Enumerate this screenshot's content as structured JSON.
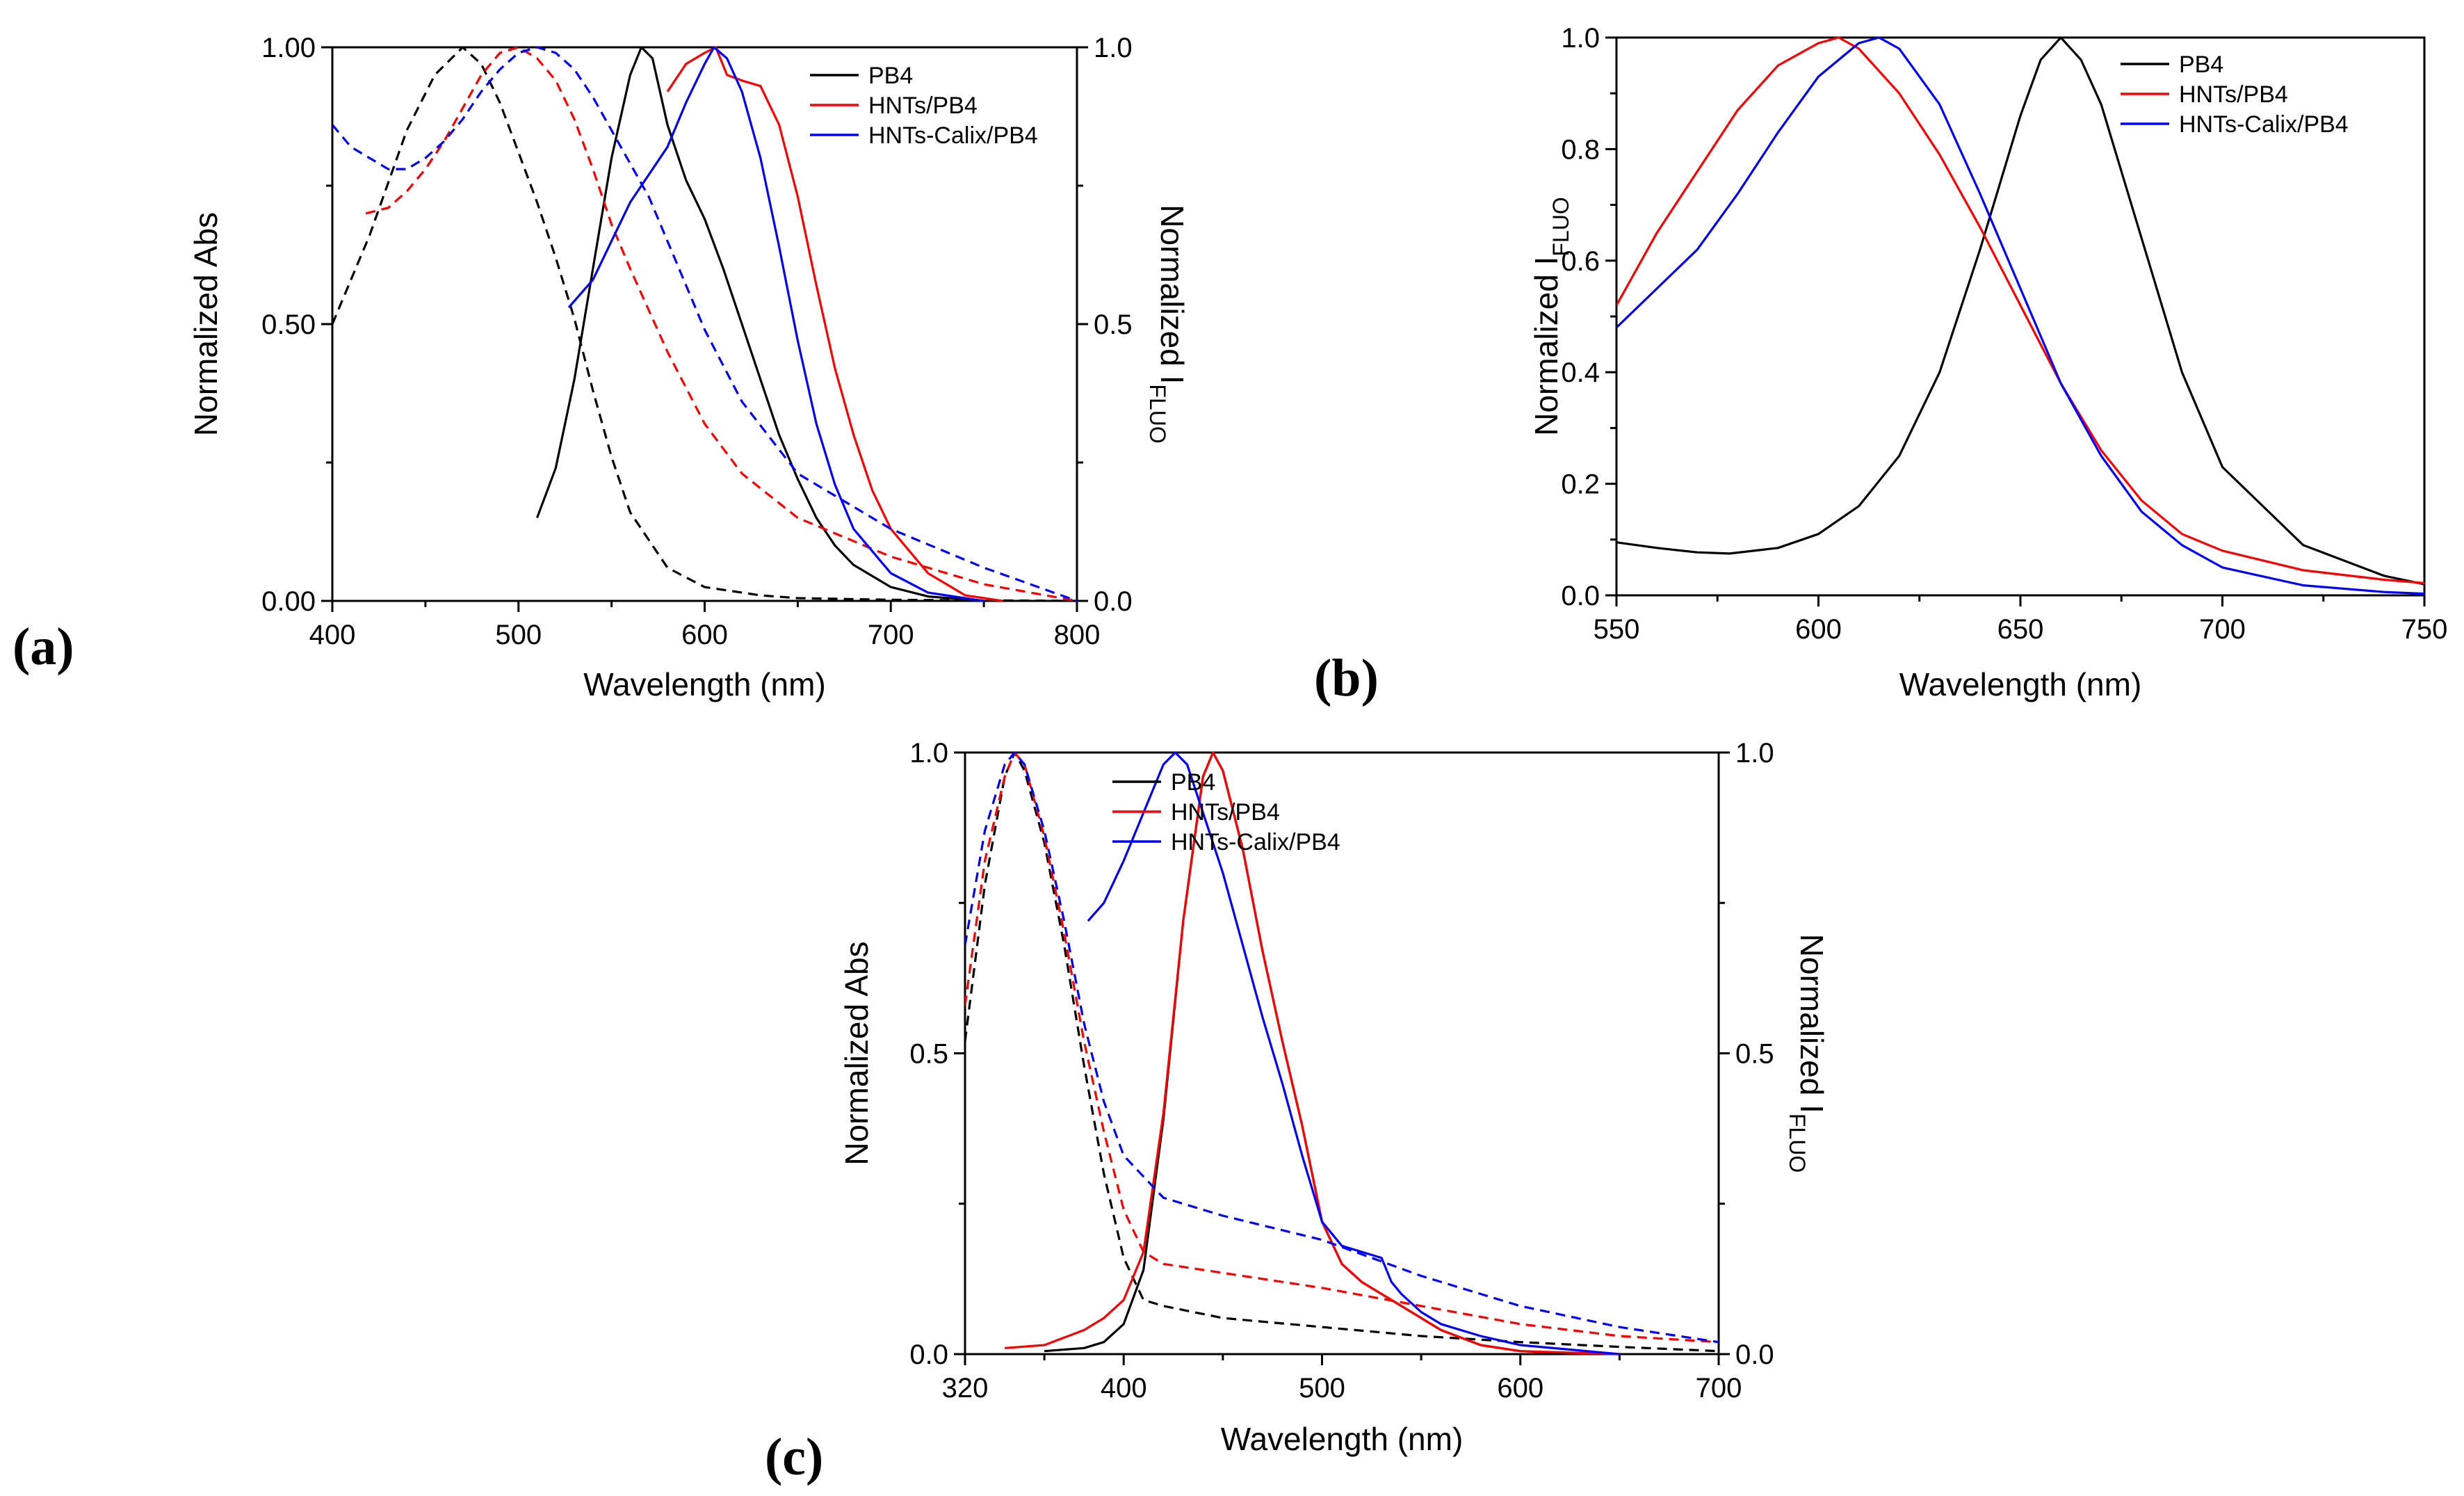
{
  "figure": {
    "panels": [
      "(a)",
      "(b)",
      "(c)"
    ]
  },
  "colors": {
    "PB4": "#000000",
    "HNTs/PB4": "#ff0000",
    "HNTs-Calix/PB4": "#0000ff"
  },
  "chart_data": [
    {
      "type": "line",
      "panel_label": "(a)",
      "xlabel": "Wavelength (nm)",
      "ylabel": "Normalized Abs",
      "y2label": "Normalized I",
      "y2label_sub": "FLUO",
      "xlim": [
        400,
        800
      ],
      "ylim": [
        0,
        1
      ],
      "y2lim": [
        0,
        1
      ],
      "xticks": [
        400,
        500,
        600,
        700,
        800
      ],
      "yticks": [
        0,
        0.5,
        1
      ],
      "ytick_labels": [
        "0.00",
        "0.50",
        "1.00"
      ],
      "y2ticks": [
        0,
        0.5,
        1
      ],
      "y2tick_labels": [
        "0.0",
        "0.5",
        "1.0"
      ],
      "legend": [
        "PB4",
        "HNTs/PB4",
        "HNTs-Calix/PB4"
      ],
      "legend_position": "top-right",
      "series": [
        {
          "name": "PB4",
          "role": "absorption",
          "style": "dashed",
          "color": "#000000",
          "x": [
            400,
            420,
            440,
            455,
            470,
            480,
            490,
            500,
            510,
            520,
            530,
            540,
            550,
            560,
            580,
            600,
            630,
            650,
            700,
            750,
            800
          ],
          "y": [
            0.5,
            0.66,
            0.85,
            0.95,
            1.0,
            0.97,
            0.9,
            0.81,
            0.72,
            0.62,
            0.51,
            0.38,
            0.26,
            0.16,
            0.06,
            0.025,
            0.01,
            0.005,
            0.002,
            0.001,
            0
          ]
        },
        {
          "name": "PB4",
          "role": "emission",
          "style": "solid",
          "color": "#000000",
          "x": [
            510,
            520,
            530,
            540,
            550,
            560,
            566,
            572,
            580,
            590,
            600,
            610,
            620,
            630,
            640,
            650,
            660,
            670,
            680,
            700,
            720,
            750
          ],
          "y": [
            0.15,
            0.24,
            0.4,
            0.6,
            0.8,
            0.95,
            1.0,
            0.98,
            0.86,
            0.76,
            0.69,
            0.6,
            0.5,
            0.4,
            0.3,
            0.22,
            0.15,
            0.1,
            0.065,
            0.025,
            0.008,
            0
          ]
        },
        {
          "name": "HNTs/PB4",
          "role": "absorption",
          "style": "dashed",
          "color": "#ff0000",
          "x": [
            418,
            430,
            440,
            450,
            460,
            470,
            480,
            490,
            500,
            510,
            520,
            530,
            540,
            550,
            560,
            580,
            600,
            620,
            650,
            700,
            750,
            800
          ],
          "y": [
            0.7,
            0.71,
            0.74,
            0.78,
            0.83,
            0.89,
            0.95,
            0.99,
            1.0,
            0.98,
            0.94,
            0.87,
            0.78,
            0.68,
            0.6,
            0.45,
            0.32,
            0.23,
            0.15,
            0.08,
            0.03,
            0
          ]
        },
        {
          "name": "HNTs/PB4",
          "role": "emission",
          "style": "solid",
          "color": "#ff0000",
          "x": [
            580,
            590,
            600,
            606,
            612,
            620,
            630,
            640,
            650,
            660,
            670,
            680,
            690,
            700,
            720,
            740,
            760
          ],
          "y": [
            0.92,
            0.97,
            0.99,
            1.0,
            0.95,
            0.94,
            0.93,
            0.86,
            0.73,
            0.57,
            0.42,
            0.3,
            0.2,
            0.13,
            0.05,
            0.01,
            0
          ]
        },
        {
          "name": "HNTs-Calix/PB4",
          "role": "absorption",
          "style": "dashed",
          "color": "#0000ff",
          "x": [
            400,
            410,
            420,
            430,
            440,
            450,
            460,
            470,
            480,
            490,
            500,
            510,
            520,
            530,
            540,
            550,
            560,
            570,
            580,
            600,
            620,
            650,
            700,
            750,
            800
          ],
          "y": [
            0.86,
            0.82,
            0.8,
            0.78,
            0.78,
            0.8,
            0.83,
            0.87,
            0.92,
            0.96,
            0.99,
            1.0,
            0.99,
            0.96,
            0.91,
            0.85,
            0.79,
            0.73,
            0.65,
            0.49,
            0.36,
            0.23,
            0.13,
            0.06,
            0
          ]
        },
        {
          "name": "HNTs-Calix/PB4",
          "role": "emission",
          "style": "solid",
          "color": "#0000ff",
          "x": [
            527,
            540,
            550,
            560,
            570,
            580,
            590,
            600,
            605,
            612,
            620,
            630,
            640,
            650,
            660,
            670,
            680,
            700,
            720,
            750
          ],
          "y": [
            0.53,
            0.58,
            0.65,
            0.72,
            0.77,
            0.82,
            0.9,
            0.97,
            1.0,
            0.98,
            0.92,
            0.8,
            0.64,
            0.47,
            0.32,
            0.21,
            0.13,
            0.05,
            0.015,
            0
          ]
        }
      ]
    },
    {
      "type": "line",
      "panel_label": "(b)",
      "xlabel": "Wavelength (nm)",
      "ylabel": "Normalized I",
      "ylabel_sub": "FLUO",
      "xlim": [
        550,
        750
      ],
      "ylim": [
        0,
        1
      ],
      "xticks": [
        550,
        600,
        650,
        700,
        750
      ],
      "yticks": [
        0,
        0.2,
        0.4,
        0.6,
        0.8,
        1
      ],
      "ytick_labels": [
        "0.0",
        "0.2",
        "0.4",
        "0.6",
        "0.8",
        "1.0"
      ],
      "legend": [
        "PB4",
        "HNTs/PB4",
        "HNTs-Calix/PB4"
      ],
      "legend_position": "top-right",
      "series": [
        {
          "name": "PB4",
          "color": "#000000",
          "x": [
            550,
            560,
            570,
            578,
            590,
            600,
            610,
            620,
            630,
            640,
            650,
            655,
            660,
            665,
            670,
            680,
            690,
            700,
            720,
            740,
            750
          ],
          "y": [
            0.095,
            0.085,
            0.077,
            0.075,
            0.085,
            0.11,
            0.16,
            0.25,
            0.4,
            0.62,
            0.86,
            0.96,
            1.0,
            0.96,
            0.88,
            0.64,
            0.4,
            0.23,
            0.09,
            0.035,
            0.02
          ]
        },
        {
          "name": "HNTs/PB4",
          "color": "#ff0000",
          "x": [
            550,
            560,
            570,
            580,
            590,
            600,
            605,
            610,
            620,
            630,
            640,
            650,
            660,
            670,
            680,
            690,
            700,
            720,
            740,
            750
          ],
          "y": [
            0.52,
            0.65,
            0.76,
            0.87,
            0.95,
            0.99,
            1.0,
            0.98,
            0.9,
            0.79,
            0.66,
            0.52,
            0.38,
            0.26,
            0.17,
            0.11,
            0.08,
            0.045,
            0.028,
            0.022
          ]
        },
        {
          "name": "HNTs-Calix/PB4",
          "color": "#0000ff",
          "x": [
            550,
            560,
            570,
            580,
            590,
            600,
            610,
            615,
            620,
            630,
            640,
            650,
            660,
            670,
            680,
            690,
            700,
            720,
            740,
            750
          ],
          "y": [
            0.48,
            0.55,
            0.62,
            0.72,
            0.83,
            0.93,
            0.99,
            1.0,
            0.98,
            0.88,
            0.72,
            0.55,
            0.38,
            0.25,
            0.15,
            0.09,
            0.05,
            0.018,
            0.006,
            0.003
          ]
        }
      ]
    },
    {
      "type": "line",
      "panel_label": "(c)",
      "xlabel": "Wavelength (nm)",
      "ylabel": "Normalized Abs",
      "y2label": "Normalized I",
      "y2label_sub": "FLUO",
      "xlim": [
        320,
        700
      ],
      "ylim": [
        0,
        1
      ],
      "y2lim": [
        0,
        1
      ],
      "xticks": [
        320,
        400,
        500,
        600,
        700
      ],
      "yticks": [
        0,
        0.5,
        1
      ],
      "ytick_labels": [
        "0.0",
        "0.5",
        "1.0"
      ],
      "y2ticks": [
        0,
        0.5,
        1
      ],
      "y2tick_labels": [
        "0.0",
        "0.5",
        "1.0"
      ],
      "legend": [
        "PB4",
        "HNTs/PB4",
        "HNTs-Calix/PB4"
      ],
      "legend_position": "top-right",
      "series": [
        {
          "name": "PB4",
          "role": "absorption",
          "style": "dashed",
          "color": "#000000",
          "x": [
            320,
            330,
            340,
            345,
            350,
            360,
            370,
            380,
            390,
            400,
            410,
            420,
            450,
            500,
            550,
            600,
            650,
            700
          ],
          "y": [
            0.52,
            0.78,
            0.96,
            1.0,
            0.97,
            0.85,
            0.68,
            0.48,
            0.3,
            0.16,
            0.09,
            0.08,
            0.06,
            0.045,
            0.03,
            0.02,
            0.012,
            0.005
          ]
        },
        {
          "name": "PB4",
          "role": "emission",
          "style": "solid",
          "color": "#000000",
          "x": [
            360,
            380,
            390,
            400,
            410,
            420,
            430,
            440,
            445,
            450,
            460,
            470,
            480,
            490,
            500,
            510,
            520,
            540,
            560,
            580,
            600,
            620,
            650
          ],
          "y": [
            0.005,
            0.01,
            0.02,
            0.05,
            0.14,
            0.39,
            0.72,
            0.96,
            1.0,
            0.97,
            0.84,
            0.67,
            0.52,
            0.38,
            0.22,
            0.15,
            0.12,
            0.08,
            0.04,
            0.015,
            0.005,
            0.002,
            0
          ]
        },
        {
          "name": "HNTs/PB4",
          "role": "absorption",
          "style": "dashed",
          "color": "#ff0000",
          "x": [
            320,
            330,
            340,
            345,
            350,
            360,
            370,
            380,
            390,
            400,
            410,
            420,
            450,
            500,
            550,
            600,
            650,
            700
          ],
          "y": [
            0.58,
            0.82,
            0.96,
            1.0,
            0.98,
            0.86,
            0.7,
            0.52,
            0.37,
            0.24,
            0.17,
            0.15,
            0.135,
            0.11,
            0.08,
            0.05,
            0.03,
            0.02
          ]
        },
        {
          "name": "HNTs/PB4",
          "role": "emission",
          "style": "solid",
          "color": "#ff0000",
          "x": [
            340,
            360,
            380,
            390,
            400,
            410,
            420,
            430,
            440,
            445,
            450,
            460,
            470,
            480,
            490,
            500,
            510,
            520,
            540,
            560,
            580,
            600,
            650
          ],
          "y": [
            0.01,
            0.015,
            0.04,
            0.06,
            0.09,
            0.17,
            0.4,
            0.72,
            0.96,
            1.0,
            0.97,
            0.84,
            0.67,
            0.52,
            0.38,
            0.22,
            0.15,
            0.12,
            0.08,
            0.04,
            0.015,
            0.005,
            0
          ]
        },
        {
          "name": "HNTs-Calix/PB4",
          "role": "absorption",
          "style": "dashed",
          "color": "#0000ff",
          "x": [
            320,
            330,
            340,
            345,
            350,
            360,
            370,
            380,
            390,
            400,
            420,
            450,
            500,
            550,
            600,
            650,
            700
          ],
          "y": [
            0.68,
            0.87,
            0.98,
            1.0,
            0.98,
            0.87,
            0.72,
            0.55,
            0.42,
            0.33,
            0.26,
            0.23,
            0.19,
            0.13,
            0.08,
            0.045,
            0.02
          ]
        },
        {
          "name": "HNTs-Calix/PB4",
          "role": "emission",
          "style": "solid",
          "color": "#0000ff",
          "x": [
            382,
            390,
            400,
            410,
            420,
            426,
            432,
            440,
            450,
            460,
            470,
            480,
            490,
            500,
            510,
            520,
            530,
            535,
            540,
            550,
            560,
            580,
            600,
            650
          ],
          "y": [
            0.72,
            0.75,
            0.82,
            0.9,
            0.98,
            1.0,
            0.98,
            0.9,
            0.8,
            0.68,
            0.56,
            0.45,
            0.33,
            0.22,
            0.18,
            0.17,
            0.16,
            0.12,
            0.1,
            0.07,
            0.05,
            0.03,
            0.015,
            0
          ]
        }
      ]
    }
  ]
}
